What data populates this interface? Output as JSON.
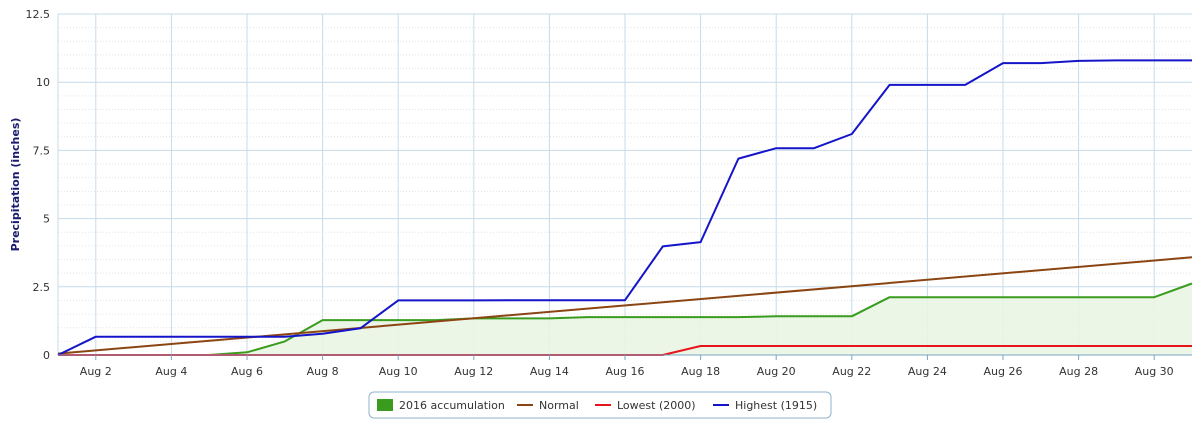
{
  "chart_data": {
    "type": "line",
    "title": "",
    "xlabel": "",
    "ylabel": "Precipitation (inches)",
    "ylim": [
      0,
      12.5
    ],
    "xlim": [
      1,
      31
    ],
    "yticks": [
      {
        "value": 0,
        "label": "0"
      },
      {
        "value": 2.5,
        "label": "2.5"
      },
      {
        "value": 5,
        "label": "5"
      },
      {
        "value": 7.5,
        "label": "7.5"
      },
      {
        "value": 10,
        "label": "10"
      },
      {
        "value": 12.5,
        "label": "12.5"
      }
    ],
    "xticks": [
      {
        "value": 2,
        "label": "Aug 2"
      },
      {
        "value": 4,
        "label": "Aug 4"
      },
      {
        "value": 6,
        "label": "Aug 6"
      },
      {
        "value": 8,
        "label": "Aug 8"
      },
      {
        "value": 10,
        "label": "Aug 10"
      },
      {
        "value": 12,
        "label": "Aug 12"
      },
      {
        "value": 14,
        "label": "Aug 14"
      },
      {
        "value": 16,
        "label": "Aug 16"
      },
      {
        "value": 18,
        "label": "Aug 18"
      },
      {
        "value": 20,
        "label": "Aug 20"
      },
      {
        "value": 22,
        "label": "Aug 22"
      },
      {
        "value": 24,
        "label": "Aug 24"
      },
      {
        "value": 26,
        "label": "Aug 26"
      },
      {
        "value": 28,
        "label": "Aug 28"
      },
      {
        "value": 30,
        "label": "Aug 30"
      }
    ],
    "grid": true,
    "legend_placement": "bottom-center",
    "series": [
      {
        "name": "2016 accumulation",
        "kind": "area",
        "color": "#3a9c1f",
        "fill": "#e9f5e3",
        "x": [
          1,
          2,
          3,
          4,
          5,
          6,
          7,
          8,
          9,
          10,
          11,
          12,
          13,
          14,
          15,
          16,
          17,
          18,
          19,
          20,
          21,
          22,
          23,
          24,
          25,
          26,
          27,
          28,
          29,
          30,
          31
        ],
        "y": [
          0,
          0,
          0,
          0,
          0,
          0.1,
          0.5,
          1.28,
          1.28,
          1.28,
          1.28,
          1.34,
          1.34,
          1.34,
          1.39,
          1.39,
          1.39,
          1.39,
          1.39,
          1.42,
          1.42,
          1.42,
          2.12,
          2.12,
          2.12,
          2.12,
          2.12,
          2.12,
          2.12,
          2.12,
          2.62
        ]
      },
      {
        "name": "Normal",
        "kind": "line",
        "color": "#8b4513",
        "x": [
          1,
          31
        ],
        "y": [
          0.05,
          3.58
        ]
      },
      {
        "name": "Lowest (2000)",
        "kind": "line",
        "color": "#e8141c",
        "x": [
          1,
          2,
          3,
          4,
          5,
          6,
          7,
          8,
          9,
          10,
          11,
          12,
          13,
          14,
          15,
          16,
          17,
          18,
          19,
          20,
          21,
          22,
          23,
          24,
          25,
          26,
          27,
          28,
          29,
          30,
          31
        ],
        "y": [
          0,
          0,
          0,
          0,
          0,
          0,
          0,
          0,
          0,
          0,
          0,
          0,
          0,
          0,
          0,
          0,
          0,
          0.33,
          0.33,
          0.33,
          0.33,
          0.33,
          0.33,
          0.33,
          0.33,
          0.33,
          0.33,
          0.33,
          0.33,
          0.33,
          0.33
        ]
      },
      {
        "name": "Highest (1915)",
        "kind": "line",
        "color": "#1414c8",
        "x": [
          1,
          2,
          3,
          4,
          5,
          6,
          7,
          8,
          9,
          10,
          11,
          12,
          13,
          14,
          15,
          16,
          17,
          18,
          19,
          20,
          21,
          22,
          23,
          24,
          25,
          26,
          27,
          28,
          29,
          30,
          31
        ],
        "y": [
          0,
          0.67,
          0.67,
          0.67,
          0.67,
          0.67,
          0.67,
          0.78,
          0.98,
          2.0,
          2.0,
          2.0,
          2.01,
          2.01,
          2.01,
          2.01,
          3.98,
          4.14,
          7.2,
          7.58,
          7.58,
          8.1,
          9.9,
          9.9,
          9.9,
          10.7,
          10.7,
          10.78,
          10.8,
          10.8,
          10.8
        ]
      }
    ]
  }
}
